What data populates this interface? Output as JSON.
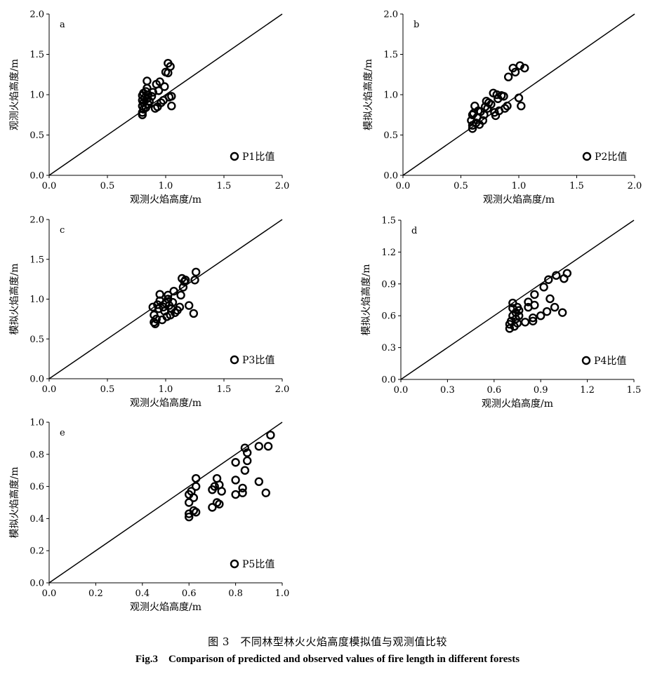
{
  "chart_data": [
    {
      "type": "scatter",
      "panel_label": "a",
      "xlabel": "观测火焰高度/m",
      "ylabel": "观测火焰高度/m",
      "legend": "P1比值",
      "legend_position": "bottom-right",
      "xlim": [
        0,
        2.0
      ],
      "ylim": [
        0,
        2.0
      ],
      "xticks": [
        "0.0",
        "0.5",
        "1.0",
        "1.5",
        "2.0"
      ],
      "yticks": [
        "0.0",
        "0.5",
        "1.0",
        "1.5",
        "2.0"
      ],
      "reference_line": "y=x",
      "points": [
        [
          0.8,
          0.75
        ],
        [
          0.8,
          0.78
        ],
        [
          0.81,
          0.82
        ],
        [
          0.8,
          0.86
        ],
        [
          0.81,
          0.9
        ],
        [
          0.8,
          0.93
        ],
        [
          0.82,
          0.96
        ],
        [
          0.8,
          0.99
        ],
        [
          0.81,
          1.02
        ],
        [
          0.83,
          1.04
        ],
        [
          0.84,
          1.08
        ],
        [
          0.85,
          1.0
        ],
        [
          0.84,
          0.95
        ],
        [
          0.86,
          0.92
        ],
        [
          0.85,
          0.88
        ],
        [
          0.83,
          0.84
        ],
        [
          0.84,
          1.17
        ],
        [
          0.88,
          0.98
        ],
        [
          0.89,
          1.03
        ],
        [
          0.91,
          0.83
        ],
        [
          0.93,
          0.85
        ],
        [
          0.92,
          1.13
        ],
        [
          0.94,
          1.05
        ],
        [
          0.95,
          1.16
        ],
        [
          0.96,
          0.9
        ],
        [
          0.98,
          0.93
        ],
        [
          0.99,
          1.1
        ],
        [
          1.0,
          1.28
        ],
        [
          1.02,
          1.27
        ],
        [
          1.02,
          1.39
        ],
        [
          1.04,
          1.35
        ],
        [
          1.05,
          0.98
        ],
        [
          1.05,
          0.86
        ],
        [
          1.03,
          0.97
        ]
      ]
    },
    {
      "type": "scatter",
      "panel_label": "b",
      "xlabel": "观测火焰高度/m",
      "ylabel": "模拟火焰高度/m",
      "legend": "P2比值",
      "legend_position": "bottom-right",
      "xlim": [
        0,
        2.0
      ],
      "ylim": [
        0,
        2.0
      ],
      "xticks": [
        "0.0",
        "0.5",
        "1.0",
        "1.5",
        "2.0"
      ],
      "yticks": [
        "0.0",
        "0.5",
        "1.0",
        "1.5",
        "2.0"
      ],
      "reference_line": "y=x",
      "points": [
        [
          0.6,
          0.58
        ],
        [
          0.6,
          0.62
        ],
        [
          0.59,
          0.68
        ],
        [
          0.6,
          0.75
        ],
        [
          0.61,
          0.77
        ],
        [
          0.62,
          0.86
        ],
        [
          0.63,
          0.65
        ],
        [
          0.64,
          0.72
        ],
        [
          0.65,
          0.8
        ],
        [
          0.66,
          0.63
        ],
        [
          0.67,
          0.79
        ],
        [
          0.69,
          0.68
        ],
        [
          0.7,
          0.75
        ],
        [
          0.71,
          0.85
        ],
        [
          0.72,
          0.92
        ],
        [
          0.73,
          0.83
        ],
        [
          0.74,
          0.9
        ],
        [
          0.76,
          0.88
        ],
        [
          0.78,
          1.02
        ],
        [
          0.79,
          0.78
        ],
        [
          0.8,
          0.74
        ],
        [
          0.81,
          1.0
        ],
        [
          0.82,
          0.95
        ],
        [
          0.83,
          0.8
        ],
        [
          0.85,
          0.99
        ],
        [
          0.87,
          0.98
        ],
        [
          0.88,
          0.83
        ],
        [
          0.9,
          0.86
        ],
        [
          0.91,
          1.22
        ],
        [
          0.95,
          1.33
        ],
        [
          0.97,
          1.28
        ],
        [
          1.0,
          0.96
        ],
        [
          1.01,
          1.36
        ],
        [
          1.02,
          0.86
        ],
        [
          1.05,
          1.33
        ]
      ]
    },
    {
      "type": "scatter",
      "panel_label": "c",
      "xlabel": "观测火焰高度/m",
      "ylabel": "模拟火焰高度/m",
      "legend": "P3比值",
      "legend_position": "bottom-right",
      "xlim": [
        0,
        2.0
      ],
      "ylim": [
        0,
        2.0
      ],
      "xticks": [
        "0.0",
        "0.5",
        "1.0",
        "1.5",
        "2.0"
      ],
      "yticks": [
        "0.0",
        "0.5",
        "1.0",
        "1.5",
        "2.0"
      ],
      "reference_line": "y=x",
      "points": [
        [
          0.89,
          0.9
        ],
        [
          0.9,
          0.8
        ],
        [
          0.9,
          0.71
        ],
        [
          0.91,
          0.69
        ],
        [
          0.92,
          0.75
        ],
        [
          0.93,
          0.93
        ],
        [
          0.94,
          0.88
        ],
        [
          0.95,
          0.98
        ],
        [
          0.95,
          1.06
        ],
        [
          0.97,
          0.74
        ],
        [
          0.98,
          0.9
        ],
        [
          0.99,
          0.85
        ],
        [
          1.0,
          0.95
        ],
        [
          1.01,
          0.78
        ],
        [
          1.02,
          1.05
        ],
        [
          1.02,
          1.0
        ],
        [
          1.03,
          0.92
        ],
        [
          1.04,
          0.8
        ],
        [
          1.05,
          0.88
        ],
        [
          1.06,
          0.96
        ],
        [
          1.07,
          1.1
        ],
        [
          1.08,
          0.83
        ],
        [
          1.1,
          0.86
        ],
        [
          1.12,
          0.9
        ],
        [
          1.13,
          1.05
        ],
        [
          1.14,
          1.26
        ],
        [
          1.15,
          1.15
        ],
        [
          1.16,
          1.22
        ],
        [
          1.17,
          1.24
        ],
        [
          1.2,
          0.92
        ],
        [
          1.24,
          0.82
        ],
        [
          1.25,
          1.24
        ],
        [
          1.26,
          1.34
        ]
      ]
    },
    {
      "type": "scatter",
      "panel_label": "d",
      "xlabel": "观测火焰高度/m",
      "ylabel": "模拟火焰高度/m",
      "legend": "P4比值",
      "legend_position": "bottom-right",
      "xlim": [
        0,
        1.5
      ],
      "ylim": [
        0,
        1.5
      ],
      "xticks": [
        "0.0",
        "0.3",
        "0.6",
        "0.9",
        "1.2",
        "1.5"
      ],
      "yticks": [
        "0.0",
        "0.3",
        "0.6",
        "0.9",
        "1.2",
        "1.5"
      ],
      "reference_line": "y=x",
      "points": [
        [
          0.7,
          0.48
        ],
        [
          0.7,
          0.52
        ],
        [
          0.71,
          0.55
        ],
        [
          0.72,
          0.6
        ],
        [
          0.72,
          0.67
        ],
        [
          0.72,
          0.72
        ],
        [
          0.73,
          0.5
        ],
        [
          0.74,
          0.57
        ],
        [
          0.74,
          0.63
        ],
        [
          0.75,
          0.68
        ],
        [
          0.75,
          0.53
        ],
        [
          0.76,
          0.6
        ],
        [
          0.76,
          0.65
        ],
        [
          0.8,
          0.54
        ],
        [
          0.82,
          0.68
        ],
        [
          0.82,
          0.73
        ],
        [
          0.85,
          0.55
        ],
        [
          0.85,
          0.58
        ],
        [
          0.86,
          0.7
        ],
        [
          0.86,
          0.8
        ],
        [
          0.9,
          0.6
        ],
        [
          0.92,
          0.87
        ],
        [
          0.94,
          0.64
        ],
        [
          0.95,
          0.94
        ],
        [
          0.96,
          0.76
        ],
        [
          0.99,
          0.68
        ],
        [
          1.0,
          0.98
        ],
        [
          1.04,
          0.63
        ],
        [
          1.05,
          0.95
        ],
        [
          1.07,
          1.0
        ]
      ]
    },
    {
      "type": "scatter",
      "panel_label": "e",
      "xlabel": "观测火焰高度/m",
      "ylabel": "模拟火焰高度/m",
      "legend": "P5比值",
      "legend_position": "bottom-right",
      "xlim": [
        0,
        1.0
      ],
      "ylim": [
        0,
        1.0
      ],
      "xticks": [
        "0.0",
        "0.2",
        "0.4",
        "0.6",
        "0.8",
        "1.0"
      ],
      "yticks": [
        "0.0",
        "0.2",
        "0.4",
        "0.6",
        "0.8",
        "1.0"
      ],
      "reference_line": "y=x",
      "points": [
        [
          0.6,
          0.41
        ],
        [
          0.6,
          0.43
        ],
        [
          0.6,
          0.5
        ],
        [
          0.6,
          0.55
        ],
        [
          0.61,
          0.57
        ],
        [
          0.62,
          0.45
        ],
        [
          0.62,
          0.53
        ],
        [
          0.63,
          0.44
        ],
        [
          0.63,
          0.6
        ],
        [
          0.63,
          0.65
        ],
        [
          0.7,
          0.47
        ],
        [
          0.7,
          0.58
        ],
        [
          0.71,
          0.6
        ],
        [
          0.72,
          0.5
        ],
        [
          0.72,
          0.65
        ],
        [
          0.73,
          0.49
        ],
        [
          0.73,
          0.61
        ],
        [
          0.74,
          0.57
        ],
        [
          0.8,
          0.55
        ],
        [
          0.8,
          0.64
        ],
        [
          0.8,
          0.75
        ],
        [
          0.83,
          0.56
        ],
        [
          0.83,
          0.59
        ],
        [
          0.84,
          0.7
        ],
        [
          0.84,
          0.84
        ],
        [
          0.85,
          0.76
        ],
        [
          0.85,
          0.81
        ],
        [
          0.9,
          0.63
        ],
        [
          0.9,
          0.85
        ],
        [
          0.93,
          0.56
        ],
        [
          0.94,
          0.85
        ],
        [
          0.95,
          0.92
        ]
      ]
    }
  ],
  "caption": {
    "cn": "图 3　不同林型林火火焰高度模拟值与观测值比较",
    "en": "Fig.3　Comparison of predicted and observed values of fire length in different forests"
  }
}
